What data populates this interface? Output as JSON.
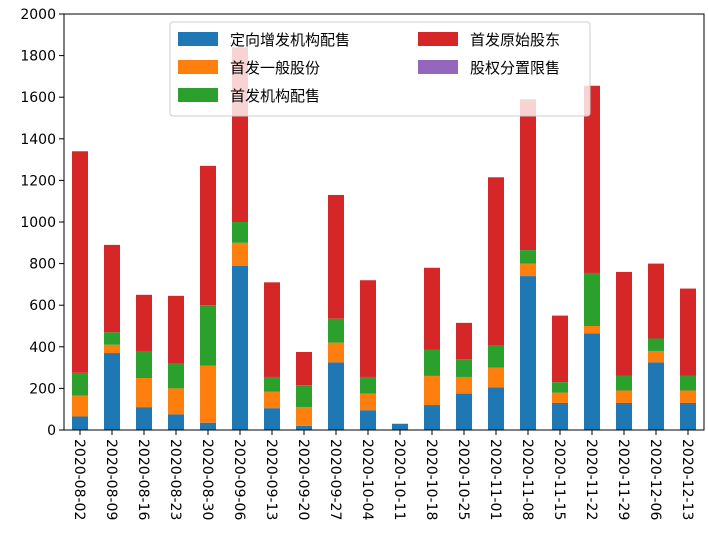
{
  "chart_data": {
    "type": "bar",
    "stacked": true,
    "categories": [
      "2020-08-02",
      "2020-08-09",
      "2020-08-16",
      "2020-08-23",
      "2020-08-30",
      "2020-09-06",
      "2020-09-13",
      "2020-09-20",
      "2020-09-27",
      "2020-10-04",
      "2020-10-11",
      "2020-10-18",
      "2020-10-25",
      "2020-11-01",
      "2020-11-08",
      "2020-11-15",
      "2020-11-22",
      "2020-11-29",
      "2020-12-06",
      "2020-12-13"
    ],
    "series": [
      {
        "name": "定向增发机构配售",
        "color": "#1f77b4",
        "values": [
          65,
          370,
          110,
          75,
          35,
          790,
          105,
          20,
          325,
          95,
          30,
          120,
          175,
          205,
          740,
          130,
          465,
          130,
          325,
          130
        ]
      },
      {
        "name": "首发一般股份",
        "color": "#ff7f0e",
        "values": [
          100,
          40,
          140,
          125,
          275,
          110,
          80,
          90,
          95,
          80,
          0,
          140,
          80,
          95,
          60,
          50,
          35,
          60,
          55,
          60
        ]
      },
      {
        "name": "首发机构配售",
        "color": "#2ca02c",
        "values": [
          110,
          60,
          130,
          120,
          290,
          100,
          70,
          105,
          115,
          80,
          0,
          125,
          85,
          105,
          65,
          50,
          255,
          70,
          60,
          70
        ]
      },
      {
        "name": "首发原始股东",
        "color": "#d62728",
        "values": [
          1065,
          420,
          270,
          325,
          670,
          840,
          455,
          160,
          595,
          465,
          0,
          395,
          175,
          810,
          725,
          320,
          900,
          500,
          360,
          420
        ]
      },
      {
        "name": "股权分置限售",
        "color": "#9467bd",
        "values": [
          0,
          0,
          0,
          0,
          0,
          0,
          0,
          0,
          0,
          0,
          0,
          0,
          0,
          0,
          0,
          0,
          0,
          0,
          0,
          0
        ]
      }
    ],
    "ylim": [
      0,
      2000
    ],
    "yticks": [
      "0",
      "200",
      "400",
      "600",
      "800",
      "1000",
      "1200",
      "1400",
      "1600",
      "1800",
      "2000"
    ],
    "grid": false,
    "legend_placement": "upper-center"
  }
}
